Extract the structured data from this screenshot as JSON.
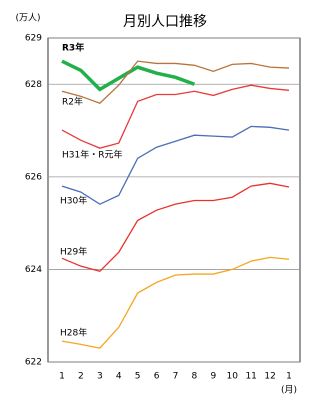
{
  "chart_data": {
    "type": "line",
    "title": "月別人口推移",
    "y_label": "(万人)",
    "x_label": "(月)",
    "categories": [
      "1",
      "2",
      "3",
      "4",
      "5",
      "6",
      "7",
      "8",
      "9",
      "10",
      "11",
      "12",
      "1"
    ],
    "ylim": [
      622,
      629
    ],
    "yticks": [
      622,
      624,
      626,
      628,
      629
    ],
    "grid": true,
    "series": [
      {
        "name": "R3年",
        "color": "#22b04b",
        "values": [
          628.5,
          628.3,
          627.89,
          628.13,
          628.37,
          628.24,
          628.15,
          628.0,
          null,
          null,
          null,
          null,
          null
        ]
      },
      {
        "name": "R2年",
        "color": "#b8733c",
        "values": [
          627.85,
          627.74,
          627.59,
          627.98,
          628.5,
          628.45,
          628.45,
          628.41,
          628.28,
          628.43,
          628.45,
          628.37,
          628.35
        ]
      },
      {
        "name": "H31年・R元年",
        "color": "#e83a3a",
        "values": [
          627.01,
          626.79,
          626.62,
          626.73,
          627.63,
          627.78,
          627.78,
          627.85,
          627.76,
          627.89,
          627.98,
          627.91,
          627.87
        ]
      },
      {
        "name": "H30年",
        "color": "#4a6fb5",
        "values": [
          625.8,
          625.67,
          625.41,
          625.6,
          626.4,
          626.64,
          626.77,
          626.9,
          626.88,
          626.86,
          627.09,
          627.07,
          627.01
        ]
      },
      {
        "name": "H29年",
        "color": "#e8322d",
        "values": [
          624.24,
          624.07,
          623.96,
          624.37,
          625.06,
          625.28,
          625.41,
          625.49,
          625.49,
          625.56,
          625.8,
          625.86,
          625.78
        ]
      },
      {
        "name": "H28年",
        "color": "#f5a623",
        "values": [
          622.45,
          622.38,
          622.3,
          622.75,
          623.49,
          623.72,
          623.88,
          623.9,
          623.9,
          624.0,
          624.18,
          624.26,
          624.22
        ]
      }
    ]
  }
}
